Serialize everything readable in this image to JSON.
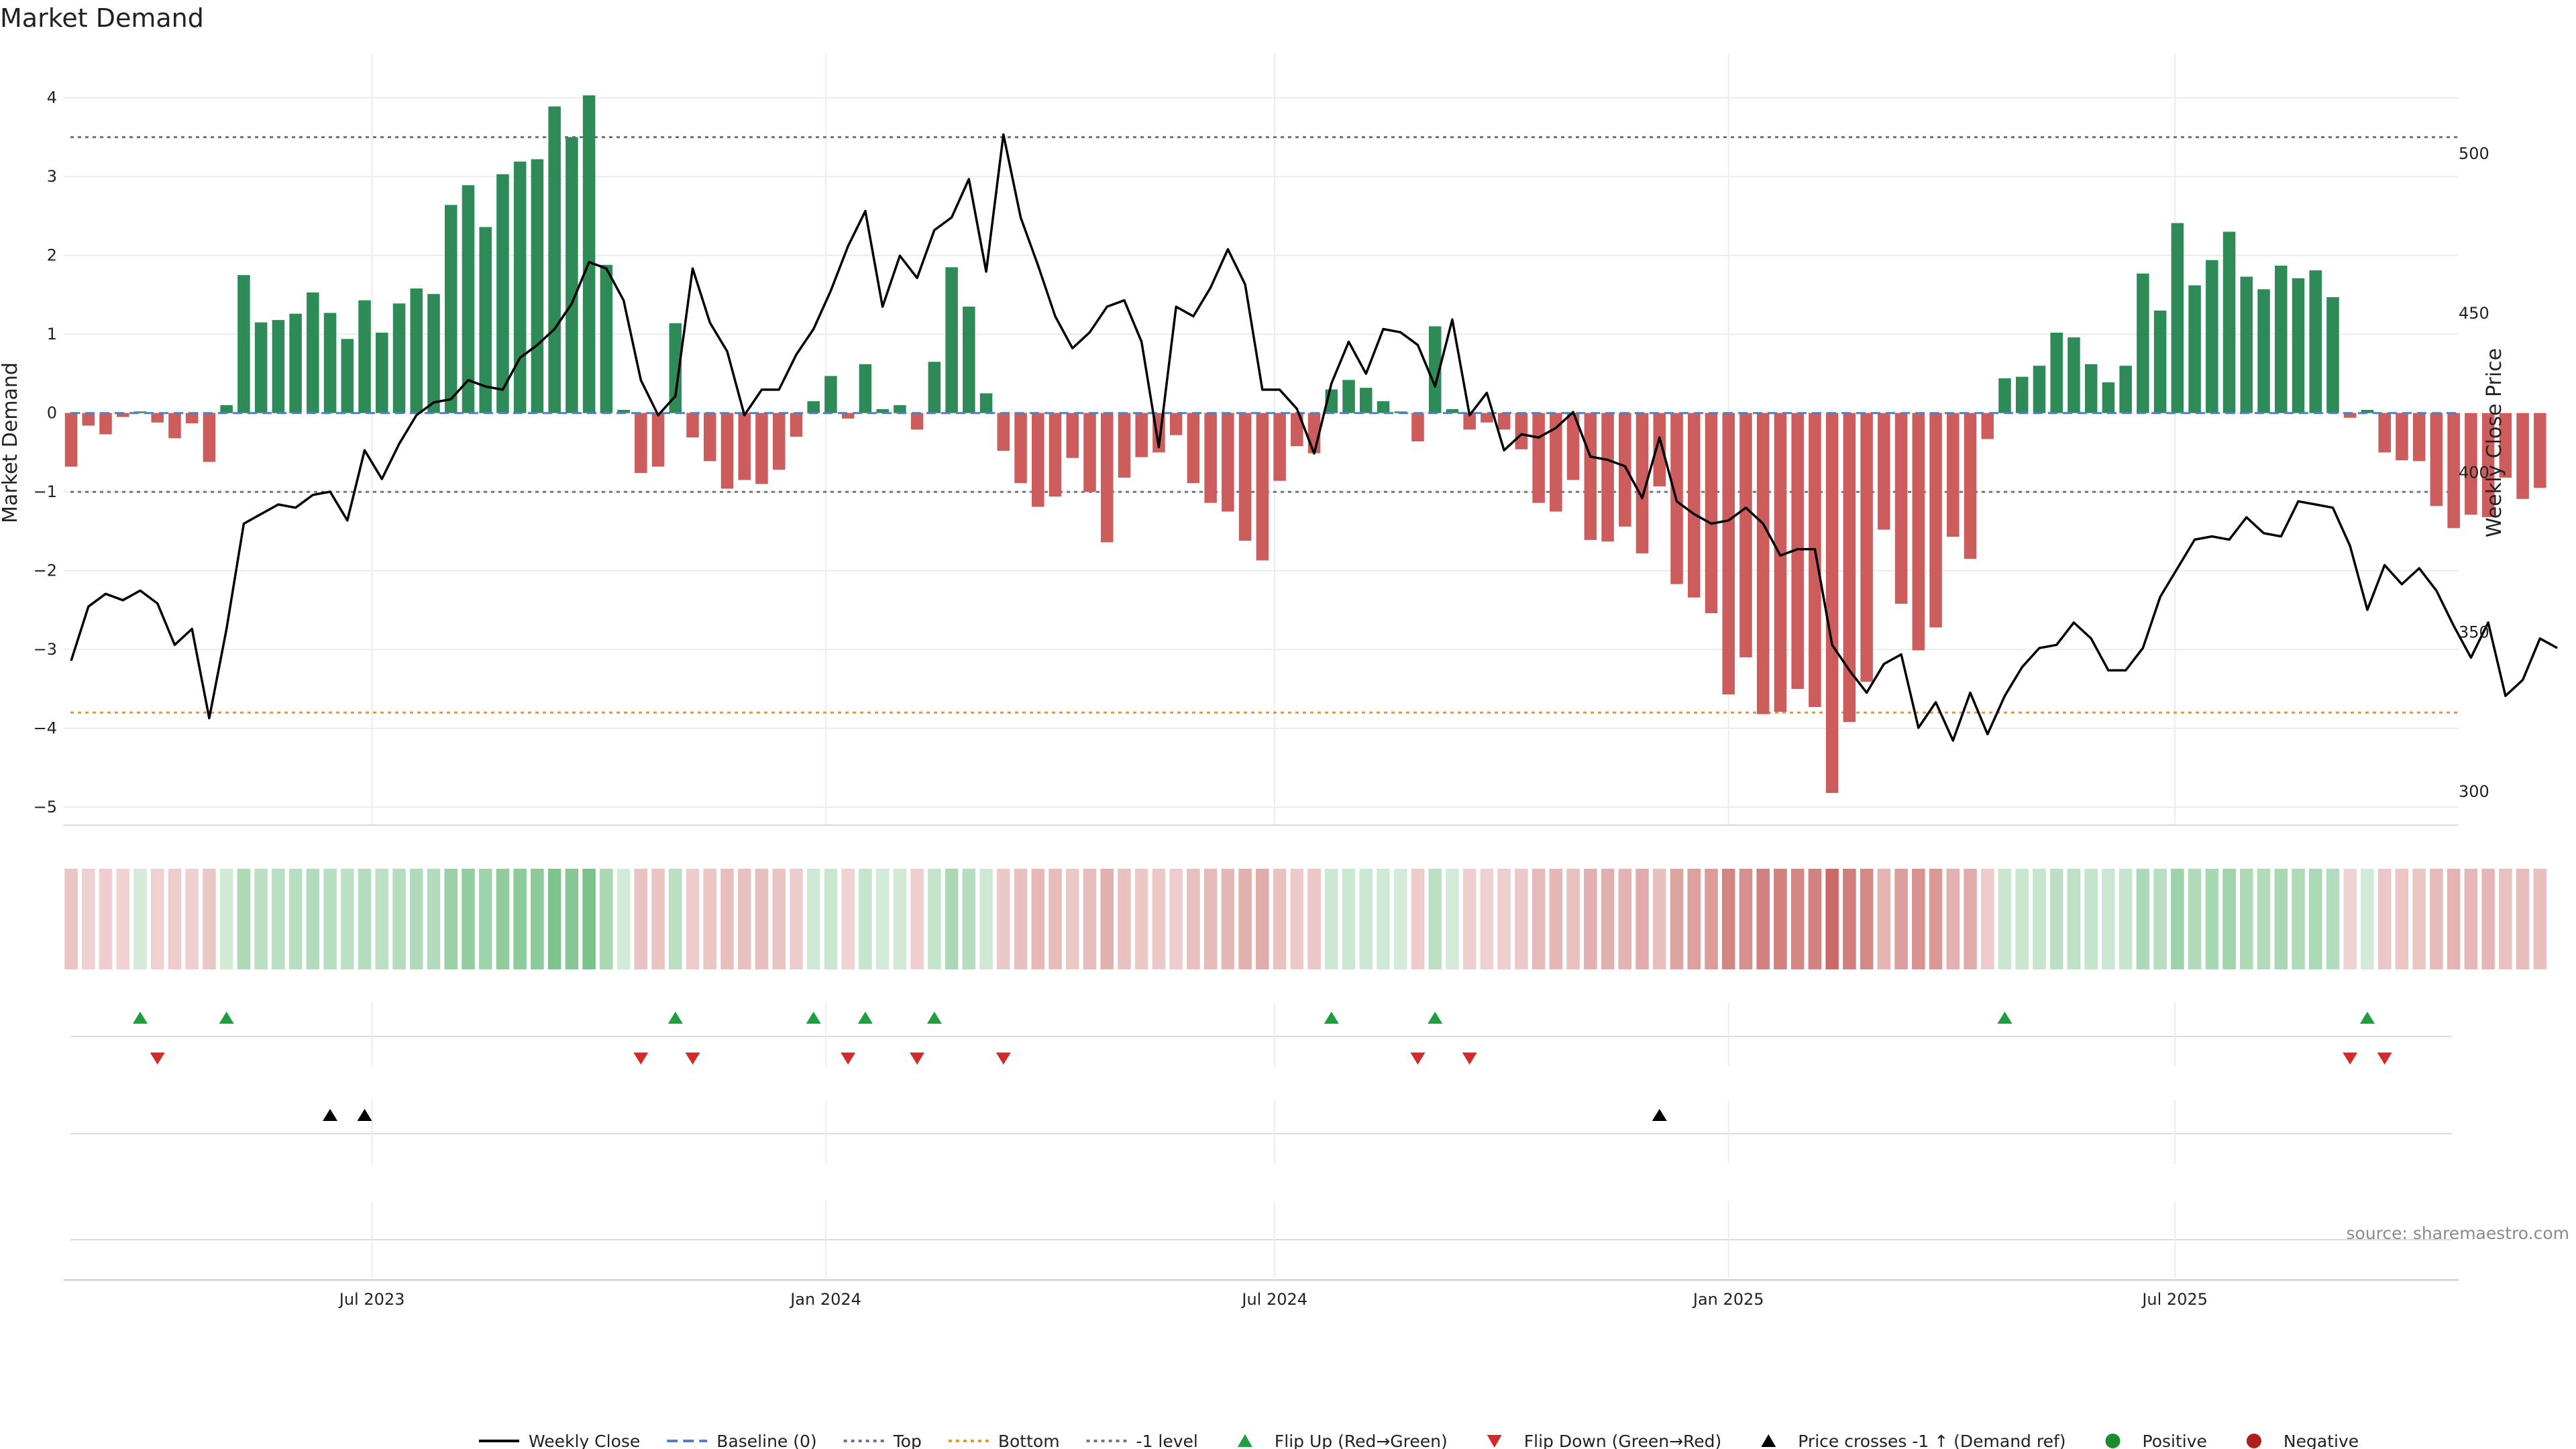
{
  "chart_data": {
    "type": "bar",
    "title": "Market Demand",
    "ylabel": "Market Demand",
    "y2label": "Weekly Close Price",
    "source": "source: sharemaestro.com",
    "ylim": [
      -5.3,
      4.4
    ],
    "y2lim": [
      292,
      528
    ],
    "yticks": [
      4,
      3,
      2,
      1,
      0,
      -1,
      -2,
      -3,
      -4,
      -5
    ],
    "ytick_labels": [
      "4",
      "3",
      "2",
      "1",
      "0",
      "−1",
      "−2",
      "−3",
      "−4",
      "−5"
    ],
    "y2ticks": [
      500,
      450,
      400,
      350,
      300
    ],
    "y2tick_labels": [
      "500",
      "450",
      "400",
      "350",
      "300"
    ],
    "x_start": "2023-02-26",
    "x_end": "2025-10-24",
    "bar_start": "2023-03-01",
    "bar_step_days": 7,
    "xticks": [
      "2023-07-01",
      "2024-01-01",
      "2024-07-01",
      "2025-01-01",
      "2025-07-01"
    ],
    "xtick_labels": [
      "Jul 2023",
      "Jan 2024",
      "Jul 2024",
      "Jan 2025",
      "Jul 2025"
    ],
    "ref_lines": {
      "top": 3.5,
      "bottom": -3.8,
      "neg_one": -1
    },
    "demand": [
      -0.68,
      -0.16,
      -0.27,
      -0.05,
      0.02,
      -0.12,
      -0.32,
      -0.13,
      -0.62,
      0.1,
      1.75,
      1.15,
      1.18,
      1.26,
      1.53,
      1.27,
      0.94,
      1.43,
      1.02,
      1.39,
      1.58,
      1.51,
      2.64,
      2.89,
      2.36,
      3.03,
      3.19,
      3.22,
      3.89,
      3.5,
      4.03,
      1.88,
      0.04,
      -0.76,
      -0.68,
      1.14,
      -0.31,
      -0.61,
      -0.96,
      -0.85,
      -0.9,
      -0.72,
      -0.3,
      0.15,
      0.47,
      -0.07,
      0.62,
      0.05,
      0.1,
      -0.21,
      0.65,
      1.85,
      1.35,
      0.25,
      -0.48,
      -0.89,
      -1.19,
      -1.06,
      -0.57,
      -1.0,
      -1.64,
      -0.82,
      -0.56,
      -0.5,
      -0.28,
      -0.89,
      -1.14,
      -1.25,
      -1.62,
      -1.87,
      -0.86,
      -0.42,
      -0.51,
      0.3,
      0.42,
      0.32,
      0.15,
      0.02,
      -0.36,
      1.1,
      0.05,
      -0.21,
      -0.12,
      -0.21,
      -0.46,
      -1.14,
      -1.25,
      -0.85,
      -1.61,
      -1.63,
      -1.44,
      -1.78,
      -0.93,
      -2.17,
      -2.34,
      -2.54,
      -3.57,
      -3.1,
      -3.82,
      -3.79,
      -3.5,
      -3.73,
      -4.82,
      -3.92,
      -3.41,
      -1.48,
      -2.42,
      -3.01,
      -2.72,
      -1.57,
      -1.85,
      -0.33,
      0.44,
      0.46,
      0.6,
      1.02,
      0.96,
      0.62,
      0.39,
      0.6,
      1.77,
      1.3,
      2.41,
      1.62,
      1.94,
      2.3,
      1.73,
      1.57,
      1.87,
      1.71,
      1.81,
      1.47,
      -0.06,
      0.04,
      -0.5,
      -0.6,
      -0.61,
      -1.18,
      -1.46,
      -1.29,
      -1.32,
      -0.82,
      -1.09,
      -0.95
    ],
    "price": [
      341,
      358,
      362,
      360,
      363,
      359,
      346,
      351,
      323,
      351,
      384,
      387,
      390,
      389,
      393,
      394,
      385,
      407,
      398,
      409,
      418,
      422,
      423,
      429,
      427,
      426,
      436,
      440,
      445,
      453,
      466,
      464,
      454,
      429,
      418,
      424,
      464,
      447,
      438,
      418,
      426,
      426,
      437,
      445,
      457,
      471,
      482,
      452,
      468,
      461,
      476,
      480,
      492,
      463,
      506,
      480,
      465,
      449,
      439,
      444,
      452,
      454,
      441,
      408,
      452,
      449,
      458,
      470,
      459,
      426,
      426,
      420,
      406,
      428,
      441,
      431,
      445,
      444,
      440,
      427,
      448,
      418,
      425,
      407,
      412,
      411,
      414,
      419,
      405,
      404,
      402,
      392,
      411,
      391,
      387,
      384,
      385,
      389,
      384,
      374,
      376,
      376,
      346,
      338,
      331,
      340,
      343,
      320,
      328,
      316,
      331,
      318,
      330,
      339,
      345,
      346,
      353,
      348,
      338,
      338,
      345,
      361,
      370,
      379,
      380,
      379,
      386,
      381,
      380,
      391,
      390,
      389,
      377,
      357,
      371,
      365,
      370,
      363,
      352,
      342,
      353,
      330,
      335,
      348,
      345
    ]
  },
  "legend": [
    {
      "label": "Weekly Close",
      "kind": "line",
      "color": "#000000"
    },
    {
      "label": "Baseline (0)",
      "kind": "dashed",
      "color": "#4f81bd"
    },
    {
      "label": "Top",
      "kind": "dotted",
      "color": "#6e6ea8"
    },
    {
      "label": "Bottom",
      "kind": "dotted",
      "color": "#e8962c"
    },
    {
      "label": "-1 level",
      "kind": "dotted",
      "color": "#777777"
    },
    {
      "label": "Flip Up (Red→Green)",
      "kind": "tri-up",
      "color": "#1e9e3c"
    },
    {
      "label": "Flip Down (Green→Red)",
      "kind": "tri-down",
      "color": "#d42a2a"
    },
    {
      "label": "Price crosses -1 ↑ (Demand ref)",
      "kind": "tri-up",
      "color": "#000000"
    },
    {
      "label": "Positive",
      "kind": "dot",
      "color": "#1a8c2e"
    },
    {
      "label": "Negative",
      "kind": "dot",
      "color": "#b01e1e"
    }
  ],
  "colors": {
    "positive_bar": "#2e8b57",
    "negative_bar": "#cd5c5c",
    "price_line": "#000000",
    "flip_up": "#1e9e3c",
    "flip_down": "#d42a2a",
    "cross": "#000000",
    "strip_pos": "#4fae64",
    "strip_neg": "#c0504d"
  }
}
